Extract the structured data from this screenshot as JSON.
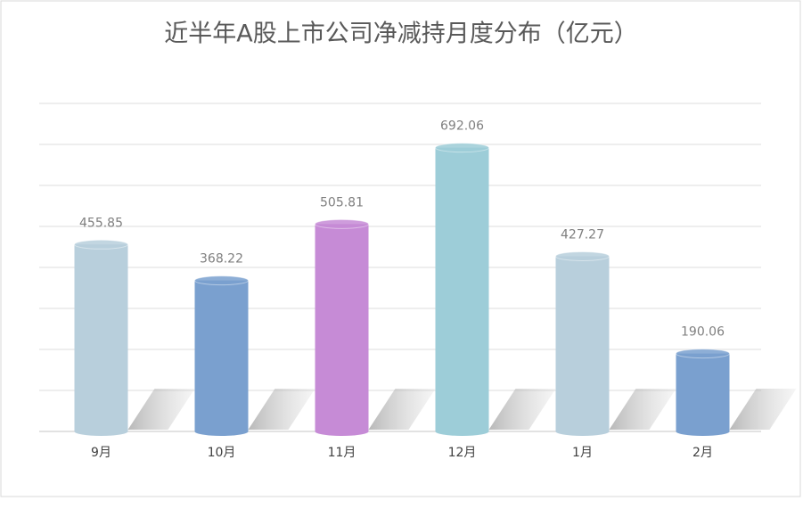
{
  "chart_data": {
    "type": "bar",
    "title": "近半年A股上市公司净减持月度分布（亿元）",
    "categories": [
      "9月",
      "10月",
      "11月",
      "12月",
      "1月",
      "2月"
    ],
    "values": [
      455.85,
      368.22,
      505.81,
      692.06,
      427.27,
      190.06
    ],
    "colors": [
      "#b8cfdc",
      "#7aa0cf",
      "#c68bd6",
      "#9dcdd8",
      "#b8cfdc",
      "#7aa0cf"
    ],
    "ylim": [
      0,
      800
    ],
    "yticks": [
      0,
      100,
      200,
      300,
      400,
      500,
      600,
      700,
      800
    ],
    "grid": true
  }
}
